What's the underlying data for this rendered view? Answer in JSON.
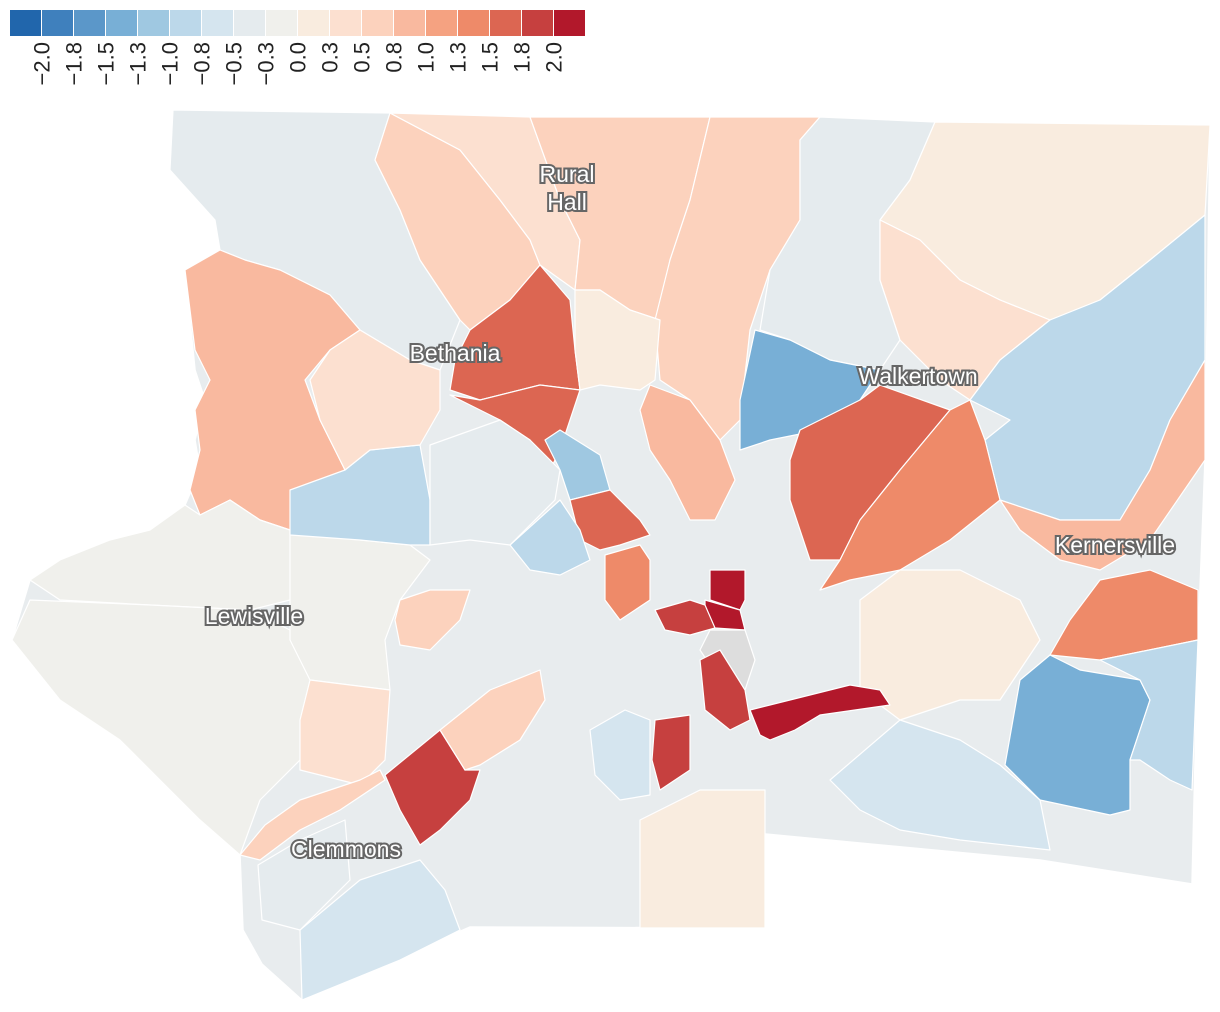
{
  "legend": {
    "values": [
      "−2.0",
      "−1.8",
      "−1.5",
      "−1.3",
      "−1.0",
      "−0.8",
      "−0.5",
      "−0.3",
      "0.0",
      "0.3",
      "0.5",
      "0.8",
      "1.0",
      "1.3",
      "1.5",
      "1.8",
      "2.0"
    ],
    "colors": [
      "#2166ac",
      "#3f80bd",
      "#5b97c9",
      "#78afd6",
      "#9fc8e1",
      "#bcd8ea",
      "#d5e5ef",
      "#e5ebee",
      "#f0f0ec",
      "#f9ecdf",
      "#fce0d0",
      "#fcd2bd",
      "#f9b99f",
      "#f5a281",
      "#ee8a69",
      "#dc6652",
      "#c6403f",
      "#b2182b"
    ]
  },
  "places": {
    "rural_hall": [
      "Rural",
      "Hall"
    ],
    "bethania": "Bethania",
    "walkertown": "Walkertown",
    "kernersville": "Kernersville",
    "lewisville": "Lewisville",
    "clemmons": "Clemmons"
  },
  "map_data": {
    "type": "choropleth",
    "missing_color": "#dddddd",
    "regions": [
      {
        "id": "nw-lobe",
        "value": -0.5
      },
      {
        "id": "west-upper",
        "value": -0.3
      },
      {
        "id": "west-lower",
        "value": -0.3
      },
      {
        "id": "lewisville-south",
        "value": -0.3
      },
      {
        "id": "far-west-peach",
        "value": 0.8
      },
      {
        "id": "bethania-north-peach",
        "value": 0.5
      },
      {
        "id": "rural-hall-west",
        "value": 0.3
      },
      {
        "id": "rural-hall-east",
        "value": 0.5
      },
      {
        "id": "north-east-strip",
        "value": 0.5
      },
      {
        "id": "bethania-orange",
        "value": 1.5
      },
      {
        "id": "bethania-orange-south",
        "value": 1.5
      },
      {
        "id": "bethania-cream",
        "value": 0.3
      },
      {
        "id": "west-blue",
        "value": -1.0
      },
      {
        "id": "north-pale-grey",
        "value": 0.0
      },
      {
        "id": "north-east-lightblue",
        "value": -0.5
      },
      {
        "id": "far-ne-grey",
        "value": 0.0
      },
      {
        "id": "ne-cream",
        "value": 0.3
      },
      {
        "id": "walkertown-blue",
        "value": -1.5
      },
      {
        "id": "walkertown-south-orange",
        "value": 1.5
      },
      {
        "id": "east-salmon",
        "value": 1.3
      },
      {
        "id": "east-lightblue-fingers",
        "value": -1.0
      },
      {
        "id": "kernersville-peach",
        "value": 0.8
      },
      {
        "id": "kernersville-salmon",
        "value": 1.3
      },
      {
        "id": "se-blue",
        "value": -1.5
      },
      {
        "id": "se-lightblue",
        "value": -0.8
      },
      {
        "id": "se-grey",
        "value": 0.0
      },
      {
        "id": "south-east-blue",
        "value": -1.0
      },
      {
        "id": "central-red",
        "value": 2.0
      },
      {
        "id": "central-red-2",
        "value": 2.0
      },
      {
        "id": "central-darkred",
        "value": 1.8
      },
      {
        "id": "central-missing",
        "value": null
      },
      {
        "id": "south-central-red",
        "value": 1.8
      },
      {
        "id": "south-crimson",
        "value": 2.0
      },
      {
        "id": "sw-red",
        "value": 1.8
      },
      {
        "id": "south-salmon",
        "value": 1.8
      },
      {
        "id": "south-peach",
        "value": 0.5
      },
      {
        "id": "south-cream",
        "value": 0.3
      },
      {
        "id": "south-blue",
        "value": -0.8
      },
      {
        "id": "south-grey",
        "value": 0.0
      },
      {
        "id": "clemmons-lightblue",
        "value": -0.8
      },
      {
        "id": "clemmons-pale",
        "value": -0.5
      },
      {
        "id": "clemmons-peach",
        "value": 0.5
      },
      {
        "id": "mid-west-lightblue",
        "value": -0.5
      },
      {
        "id": "mid-blue",
        "value": -1.0
      },
      {
        "id": "mid-blue-2",
        "value": -1.3
      },
      {
        "id": "center-west-salmon",
        "value": 1.3
      },
      {
        "id": "center-west-peach",
        "value": 0.5
      },
      {
        "id": "center-orange",
        "value": 1.5
      },
      {
        "id": "center-peach-2",
        "value": 0.8
      }
    ]
  }
}
